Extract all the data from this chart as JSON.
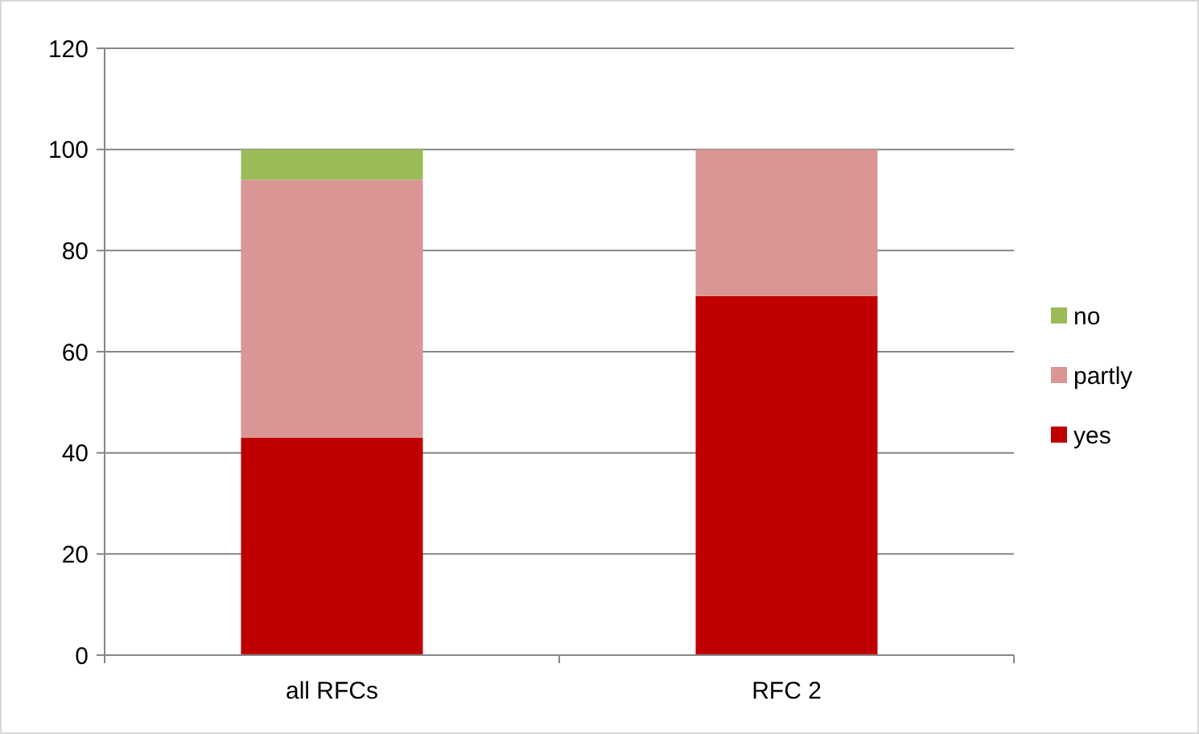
{
  "chart_data": {
    "type": "bar",
    "stacked": true,
    "categories": [
      "all RFCs",
      "RFC 2"
    ],
    "series": [
      {
        "name": "yes",
        "color": "#c00000",
        "values": [
          43,
          71
        ]
      },
      {
        "name": "partly",
        "color": "#d99694",
        "values": [
          51,
          29
        ]
      },
      {
        "name": "no",
        "color": "#9bbb59",
        "values": [
          6,
          0
        ]
      }
    ],
    "ylim": [
      0,
      120
    ],
    "yticks": [
      0,
      20,
      40,
      60,
      80,
      100,
      120
    ],
    "grid": "y",
    "legend": "right"
  }
}
